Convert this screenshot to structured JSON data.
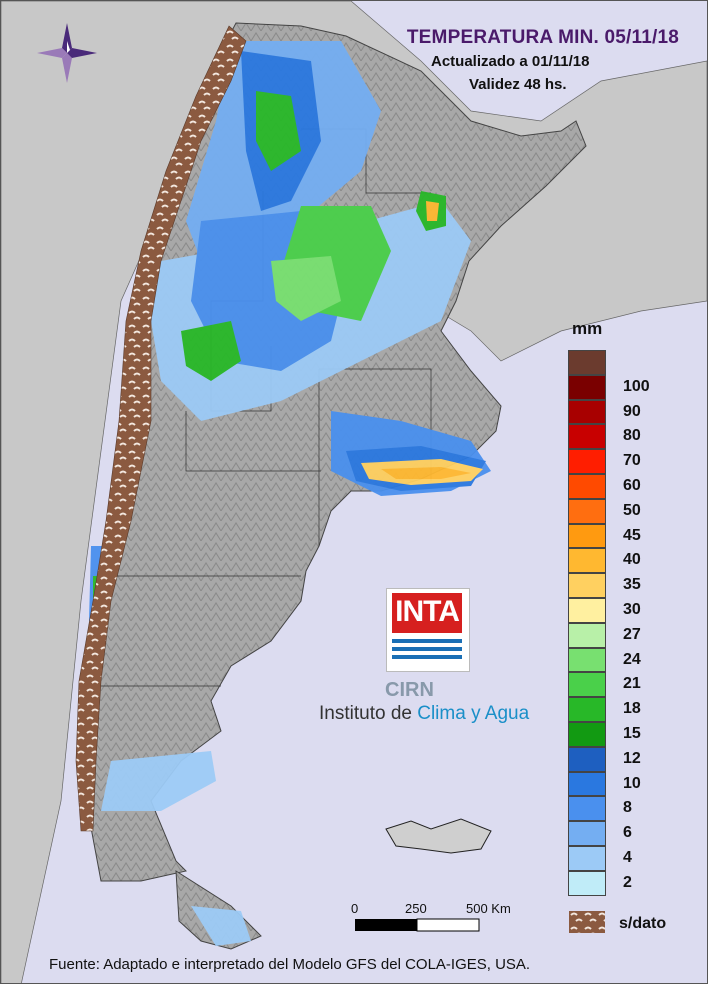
{
  "title": "TEMPERATURA MIN. 05/11/18",
  "subtitle_updated": "Actualizado a 01/11/18",
  "subtitle_validity": "Validez 48 hs.",
  "legend": {
    "unit": "mm",
    "entries": [
      {
        "label": "",
        "color": "#6b3b2e"
      },
      {
        "label": "100",
        "color": "#7a0000"
      },
      {
        "label": "90",
        "color": "#a80000"
      },
      {
        "label": "80",
        "color": "#c80000"
      },
      {
        "label": "70",
        "color": "#ff1e00"
      },
      {
        "label": "60",
        "color": "#ff4a00"
      },
      {
        "label": "50",
        "color": "#ff6e10"
      },
      {
        "label": "45",
        "color": "#ff9a10"
      },
      {
        "label": "40",
        "color": "#ffb830"
      },
      {
        "label": "35",
        "color": "#ffd060"
      },
      {
        "label": "30",
        "color": "#fff0a0"
      },
      {
        "label": "27",
        "color": "#b8f0a8"
      },
      {
        "label": "24",
        "color": "#78e070"
      },
      {
        "label": "21",
        "color": "#4ad04a"
      },
      {
        "label": "18",
        "color": "#28b828"
      },
      {
        "label": "15",
        "color": "#129a12"
      },
      {
        "label": "12",
        "color": "#1e5fc0"
      },
      {
        "label": "10",
        "color": "#2a78e0"
      },
      {
        "label": "8",
        "color": "#4a90ee"
      },
      {
        "label": "6",
        "color": "#74aef2"
      },
      {
        "label": "4",
        "color": "#9ccaf6"
      },
      {
        "label": "2",
        "color": "#c0ecf8"
      }
    ],
    "no_data_label": "s/dato",
    "no_data_color": "#8b5a40"
  },
  "scale_bar": {
    "label_0": "0",
    "label_mid": "250",
    "label_end": "500 Km"
  },
  "logo": {
    "inta": "INTA",
    "cirn": "CIRN",
    "institute_prefix": "Instituto de ",
    "institute_highlight": "Clima y Agua"
  },
  "footer": "Fuente: Adaptado e interpretado del Modelo GFS del COLA-IGES, USA."
}
